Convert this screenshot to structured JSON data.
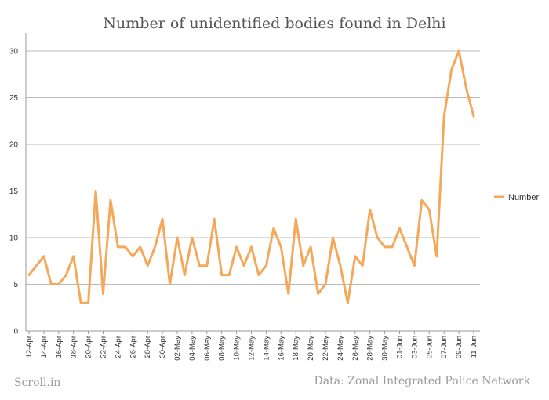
{
  "chart_data": {
    "type": "line",
    "title": "Number of unidentified bodies found in Delhi",
    "xlabel": "",
    "ylabel": "",
    "ylim": [
      0,
      32
    ],
    "yticks": [
      0,
      5,
      10,
      15,
      20,
      25,
      30
    ],
    "grid": true,
    "legend_position": "right",
    "x_tick_labels": [
      "12-Apr",
      "14-Apr",
      "16-Apr",
      "18-Apr",
      "20-Apr",
      "22-Apr",
      "24-Apr",
      "26-Apr",
      "28-Apr",
      "30-Apr",
      "02-May",
      "04-May",
      "06-May",
      "08-May",
      "10-May",
      "12-May",
      "14-May",
      "16-May",
      "18-May",
      "20-May",
      "22-May",
      "24-May",
      "26-May",
      "28-May",
      "30-May",
      "01-Jun",
      "03-Jun",
      "05-Jun",
      "07-Jun",
      "09-Jun",
      "11-Jun"
    ],
    "x": [
      "12-Apr",
      "13-Apr",
      "14-Apr",
      "15-Apr",
      "16-Apr",
      "17-Apr",
      "18-Apr",
      "19-Apr",
      "20-Apr",
      "21-Apr",
      "22-Apr",
      "23-Apr",
      "24-Apr",
      "25-Apr",
      "26-Apr",
      "27-Apr",
      "28-Apr",
      "29-Apr",
      "30-Apr",
      "01-May",
      "02-May",
      "03-May",
      "04-May",
      "05-May",
      "06-May",
      "07-May",
      "08-May",
      "09-May",
      "10-May",
      "11-May",
      "12-May",
      "13-May",
      "14-May",
      "15-May",
      "16-May",
      "17-May",
      "18-May",
      "19-May",
      "20-May",
      "21-May",
      "22-May",
      "23-May",
      "24-May",
      "25-May",
      "26-May",
      "27-May",
      "28-May",
      "29-May",
      "30-May",
      "31-May",
      "01-Jun",
      "02-Jun",
      "03-Jun",
      "04-Jun",
      "05-Jun",
      "06-Jun",
      "07-Jun",
      "08-Jun",
      "09-Jun",
      "10-Jun",
      "11-Jun"
    ],
    "series": [
      {
        "name": "Number",
        "color": "#f4a95a",
        "values": [
          6,
          7,
          8,
          5,
          5,
          6,
          8,
          3,
          3,
          15,
          4,
          14,
          9,
          9,
          8,
          9,
          7,
          9,
          12,
          5,
          10,
          6,
          10,
          7,
          7,
          12,
          6,
          6,
          9,
          7,
          9,
          6,
          7,
          11,
          9,
          4,
          12,
          7,
          9,
          4,
          5,
          10,
          7,
          3,
          8,
          7,
          13,
          10,
          9,
          9,
          11,
          9,
          7,
          14,
          13,
          8,
          23,
          28,
          30,
          26,
          23
        ]
      }
    ]
  },
  "footer": {
    "source_left": "Scroll.in",
    "source_right": "Data: Zonal Integrated Police Network"
  }
}
